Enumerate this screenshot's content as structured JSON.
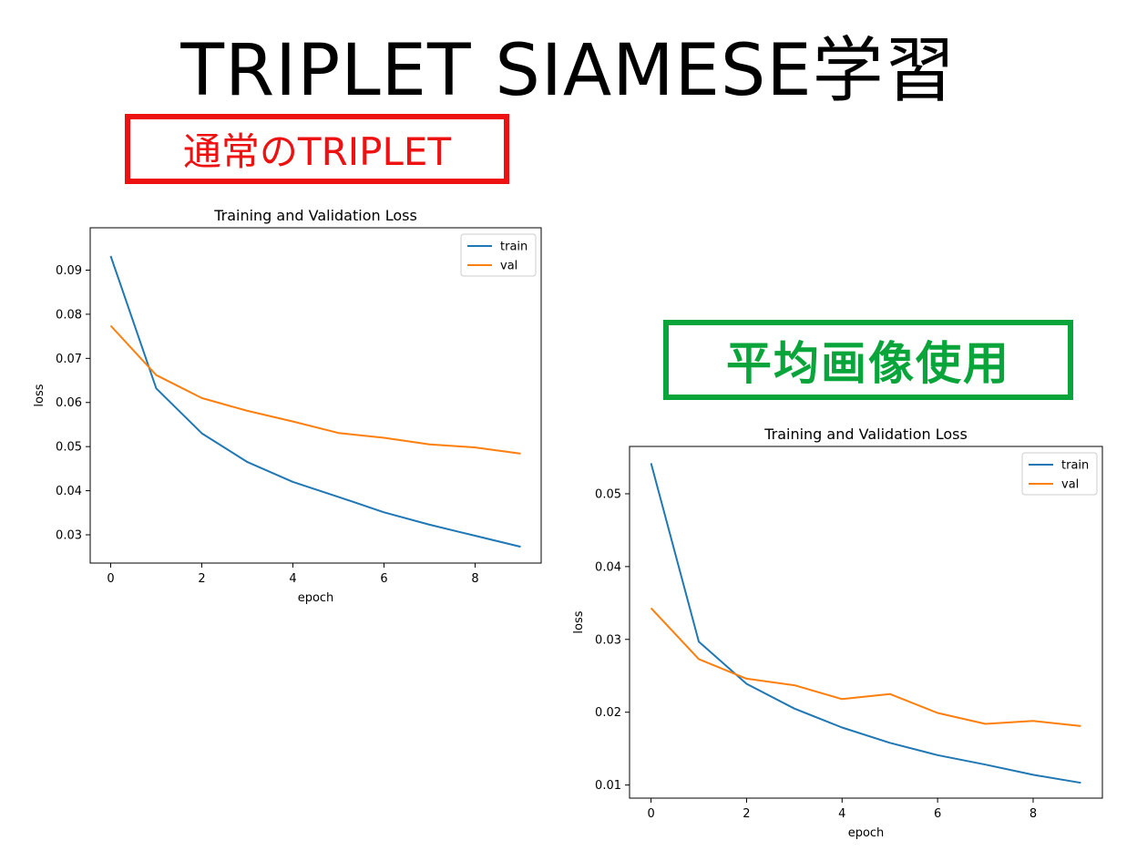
{
  "page": {
    "title": "TRIPLET SIAMESE学習",
    "left_label": "通常のTRIPLET",
    "right_label": "平均画像使用",
    "left_label_color": "#ee1111",
    "right_label_color": "#0aa53a"
  },
  "chart_data": [
    {
      "type": "line",
      "title": "Training and Validation Loss",
      "xlabel": "epoch",
      "ylabel": "loss",
      "x": [
        0,
        1,
        2,
        3,
        4,
        5,
        6,
        7,
        8,
        9
      ],
      "xlim": [
        -0.45,
        9.45
      ],
      "ylim": [
        0.0236,
        0.0996
      ],
      "xticks": [
        0,
        2,
        4,
        6,
        8
      ],
      "yticks": [
        0.03,
        0.04,
        0.05,
        0.06,
        0.07,
        0.08,
        0.09
      ],
      "legend": "top-right",
      "grid": false,
      "series": [
        {
          "name": "train",
          "color": "#1f77b4",
          "values": [
            0.0932,
            0.0632,
            0.053,
            0.0465,
            0.042,
            0.0386,
            0.0351,
            0.0323,
            0.0298,
            0.0273
          ]
        },
        {
          "name": "val",
          "color": "#ff7f0e",
          "values": [
            0.0774,
            0.0662,
            0.061,
            0.0581,
            0.0557,
            0.0531,
            0.052,
            0.0505,
            0.0498,
            0.0484
          ]
        }
      ]
    },
    {
      "type": "line",
      "title": "Training and Validation Loss",
      "xlabel": "epoch",
      "ylabel": "loss",
      "x": [
        0,
        1,
        2,
        3,
        4,
        5,
        6,
        7,
        8,
        9
      ],
      "xlim": [
        -0.45,
        9.45
      ],
      "ylim": [
        0.0082,
        0.0565
      ],
      "xticks": [
        0,
        2,
        4,
        6,
        8
      ],
      "yticks": [
        0.01,
        0.02,
        0.03,
        0.04,
        0.05
      ],
      "legend": "top-right",
      "grid": false,
      "series": [
        {
          "name": "train",
          "color": "#1f77b4",
          "values": [
            0.0542,
            0.0297,
            0.0239,
            0.0205,
            0.0179,
            0.0158,
            0.0141,
            0.0128,
            0.0114,
            0.0103
          ]
        },
        {
          "name": "val",
          "color": "#ff7f0e",
          "values": [
            0.0343,
            0.0273,
            0.0246,
            0.0237,
            0.0218,
            0.0225,
            0.0199,
            0.0184,
            0.0188,
            0.0181
          ]
        }
      ]
    }
  ]
}
